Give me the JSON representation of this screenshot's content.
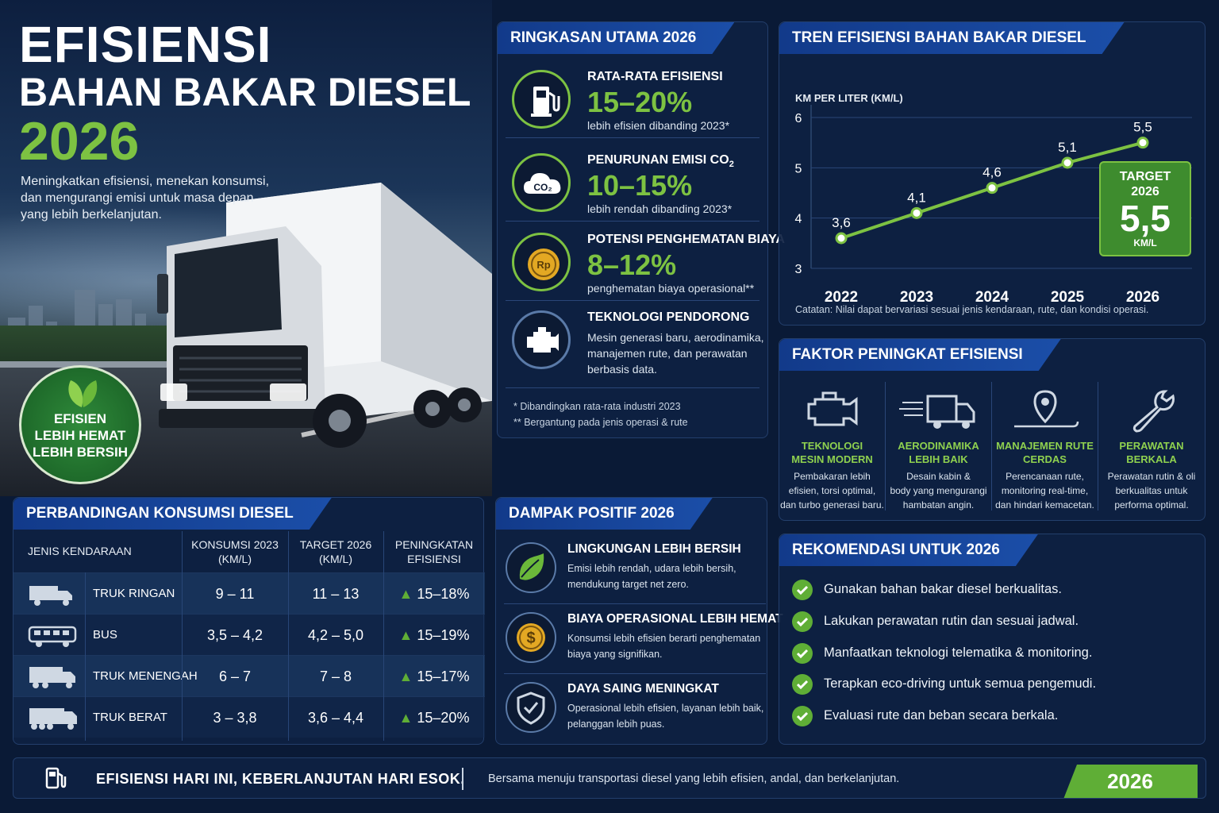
{
  "hero": {
    "title_line1": "EFISIENSI",
    "title_line2": "BAHAN BAKAR DIESEL",
    "title_year": "2026",
    "subtitle": "Meningkatkan efisiensi, menekan konsumsi, dan mengurangi emisi untuk masa depan yang lebih berkelanjutan.",
    "badge_lines": [
      "EFISIEN",
      "LEBIH HEMAT",
      "LEBIH BERSIH"
    ]
  },
  "colors": {
    "accent_green": "#7dc242",
    "header_blue": "#1b4ea8",
    "bg_navy": "#0a1a36"
  },
  "summary": {
    "title": "RINGKASAN UTAMA 2026",
    "items": [
      {
        "icon": "fuel-pump-icon",
        "label": "RATA-RATA EFISIENSI",
        "value": "15–20%",
        "desc": "lebih efisien dibanding 2023*"
      },
      {
        "icon": "co2-cloud-icon",
        "label": "PENURUNAN EMISI CO",
        "label_sub": "2",
        "value": "10–15%",
        "desc": "lebih rendah dibanding 2023*"
      },
      {
        "icon": "rupiah-coin-icon",
        "label": "POTENSI PENGHEMATAN BIAYA",
        "value": "8–12%",
        "desc": "penghematan biaya operasional**"
      },
      {
        "icon": "engine-icon",
        "label": "TEKNOLOGI PENDORONG",
        "desc": "Mesin generasi baru, aerodinamika, manajemen rute, dan perawatan berbasis data."
      }
    ],
    "icon_text_co2": "CO₂",
    "icon_text_rp": "Rp",
    "notes": [
      "* Dibandingkan rata-rata industri 2023",
      "** Bergantung pada jenis operasi & rute"
    ]
  },
  "trend": {
    "title": "TREN EFISIENSI BAHAN BAKAR DIESEL",
    "note": "Catatan: Nilai dapat bervariasi sesuai jenis kendaraan, rute, dan kondisi operasi.",
    "target": {
      "label_line1": "TARGET",
      "label_line2": "2026",
      "value": "5,5",
      "unit": "KM/L"
    }
  },
  "chart_data": {
    "type": "line",
    "ylabel": "KM PER LITER (KM/L)",
    "x": [
      "2022",
      "2023",
      "2024",
      "2025",
      "2026"
    ],
    "values": [
      3.6,
      4.1,
      4.6,
      5.1,
      5.5
    ],
    "point_labels": [
      "3,6",
      "4,1",
      "4,6",
      "5,1",
      "5,5"
    ],
    "yticks": [
      "3",
      "4",
      "5",
      "6"
    ],
    "ylim": [
      3,
      6
    ],
    "grid": true,
    "line_color": "#7dc242"
  },
  "factors": {
    "title": "FAKTOR PENINGKAT EFISIENSI",
    "items": [
      {
        "icon": "engine-outline-icon",
        "title_lines": [
          "TEKNOLOGI",
          "MESIN MODERN"
        ],
        "desc_lines": [
          "Pembakaran lebih",
          "efisien, torsi optimal,",
          "dan turbo generasi baru."
        ]
      },
      {
        "icon": "aerodynamic-truck-icon",
        "title_lines": [
          "AERODINAMIKA",
          "LEBIH BAIK"
        ],
        "desc_lines": [
          "Desain kabin &",
          "body yang mengurangi",
          "hambatan angin."
        ]
      },
      {
        "icon": "route-pin-icon",
        "title_lines": [
          "MANAJEMEN RUTE",
          "CERDAS"
        ],
        "desc_lines": [
          "Perencanaan rute,",
          "monitoring real-time,",
          "dan hindari kemacetan."
        ]
      },
      {
        "icon": "wrench-icon",
        "title_lines": [
          "PERAWATAN",
          "BERKALA"
        ],
        "desc_lines": [
          "Perawatan rutin & oli",
          "berkualitas untuk",
          "performa optimal."
        ]
      }
    ]
  },
  "comparison": {
    "title": "PERBANDINGAN KONSUMSI DIESEL",
    "headers": {
      "vehicle": "JENIS KENDARAAN",
      "c2023_lines": [
        "KONSUMSI 2023",
        "(KM/L)"
      ],
      "t2026_lines": [
        "TARGET 2026",
        "(KM/L)"
      ],
      "gain_lines": [
        "PENINGKATAN",
        "EFISIENSI"
      ]
    },
    "rows": [
      {
        "icon": "light-truck-icon",
        "name": "TRUK RINGAN",
        "c2023": "9 – 11",
        "t2026": "11 – 13",
        "gain": "15–18%"
      },
      {
        "icon": "bus-icon",
        "name": "BUS",
        "c2023": "3,5 – 4,2",
        "t2026": "4,2 – 5,0",
        "gain": "15–19%"
      },
      {
        "icon": "medium-truck-icon",
        "name": "TRUK MENENGAH",
        "c2023": "6 – 7",
        "t2026": "7 – 8",
        "gain": "15–17%"
      },
      {
        "icon": "heavy-truck-icon",
        "name": "TRUK BERAT",
        "c2023": "3 – 3,8",
        "t2026": "3,6 – 4,4",
        "gain": "15–20%"
      }
    ]
  },
  "impact": {
    "title": "DAMPAK POSITIF 2026",
    "items": [
      {
        "icon": "leaf-icon",
        "title": "LINGKUNGAN LEBIH BERSIH",
        "desc": "Emisi lebih rendah, udara lebih bersih, mendukung target net zero."
      },
      {
        "icon": "dollar-coin-icon",
        "title": "BIAYA OPERASIONAL LEBIH HEMAT",
        "desc": "Konsumsi lebih efisien berarti penghematan biaya yang signifikan."
      },
      {
        "icon": "shield-check-icon",
        "title": "DAYA SAING MENINGKAT",
        "desc": "Operasional lebih efisien, layanan lebih baik, pelanggan lebih puas."
      }
    ]
  },
  "recommendations": {
    "title": "REKOMENDASI UNTUK 2026",
    "items": [
      "Gunakan bahan bakar diesel berkualitas.",
      "Lakukan perawatan rutin dan sesuai jadwal.",
      "Manfaatkan teknologi telematika & monitoring.",
      "Terapkan eco-driving untuk semua pengemudi.",
      "Evaluasi rute dan beban secara berkala."
    ]
  },
  "footer": {
    "slogan": "EFISIENSI HARI INI, KEBERLANJUTAN HARI ESOK.",
    "tagline": "Bersama menuju transportasi diesel yang lebih efisien, andal, dan berkelanjutan.",
    "year": "2026"
  }
}
